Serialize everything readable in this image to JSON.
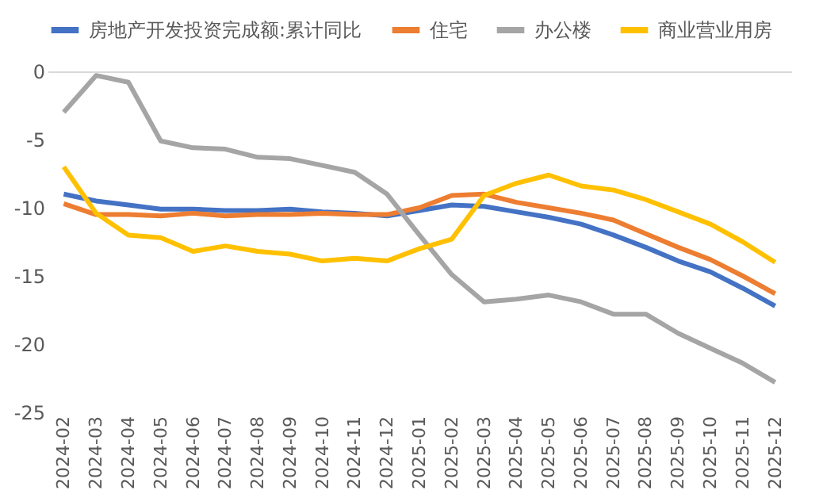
{
  "chart_data": {
    "type": "line",
    "categories": [
      "2024-02",
      "2024-03",
      "2024-04",
      "2024-05",
      "2024-06",
      "2024-07",
      "2024-08",
      "2024-09",
      "2024-10",
      "2024-11",
      "2024-12",
      "2025-01",
      "2025-02",
      "2025-03",
      "2025-04",
      "2025-05",
      "2025-06",
      "2025-07",
      "2025-08",
      "2025-09",
      "2025-10",
      "2025-11",
      "2025-12"
    ],
    "series": [
      {
        "name": "房地产开发投资完成额:累计同比",
        "color": "#4472c4",
        "values": [
          -9.0,
          -9.5,
          -9.8,
          -10.1,
          -10.1,
          -10.2,
          -10.2,
          -10.1,
          -10.3,
          -10.4,
          -10.6,
          -10.2,
          -9.8,
          -9.9,
          -10.3,
          -10.7,
          -11.2,
          -12.0,
          -12.9,
          -13.9,
          -14.7,
          -15.9,
          -17.2
        ]
      },
      {
        "name": "住宅",
        "color": "#ed7d31",
        "values": [
          -9.7,
          -10.5,
          -10.5,
          -10.6,
          -10.4,
          -10.6,
          -10.5,
          -10.5,
          -10.4,
          -10.5,
          -10.5,
          -10.0,
          -9.1,
          -9.0,
          -9.6,
          -10.0,
          -10.4,
          -10.9,
          -11.9,
          -12.9,
          -13.8,
          -15.0,
          -16.3
        ]
      },
      {
        "name": "办公楼",
        "color": "#a5a5a5",
        "values": [
          -3.0,
          -0.3,
          -0.8,
          -5.1,
          -5.6,
          -5.7,
          -6.3,
          -6.4,
          -6.9,
          -7.4,
          -9.0,
          -12.0,
          -14.9,
          -16.9,
          -16.7,
          -16.4,
          -16.9,
          -17.8,
          -17.8,
          -19.2,
          -20.3,
          -21.4,
          -22.8
        ]
      },
      {
        "name": "商业营业用房",
        "color": "#ffc000",
        "values": [
          -7.0,
          -10.4,
          -12.0,
          -12.2,
          -13.2,
          -12.8,
          -13.2,
          -13.4,
          -13.9,
          -13.7,
          -13.9,
          -13.0,
          -12.3,
          -9.1,
          -8.2,
          -7.6,
          -8.4,
          -8.7,
          -9.4,
          -10.3,
          -11.2,
          -12.5,
          -14.0
        ]
      }
    ],
    "ylim": [
      -25,
      0
    ],
    "yticks": [
      -25,
      -20,
      -15,
      -10,
      -5,
      0
    ],
    "legend": "top",
    "marker": "none",
    "line_style": "solid"
  }
}
